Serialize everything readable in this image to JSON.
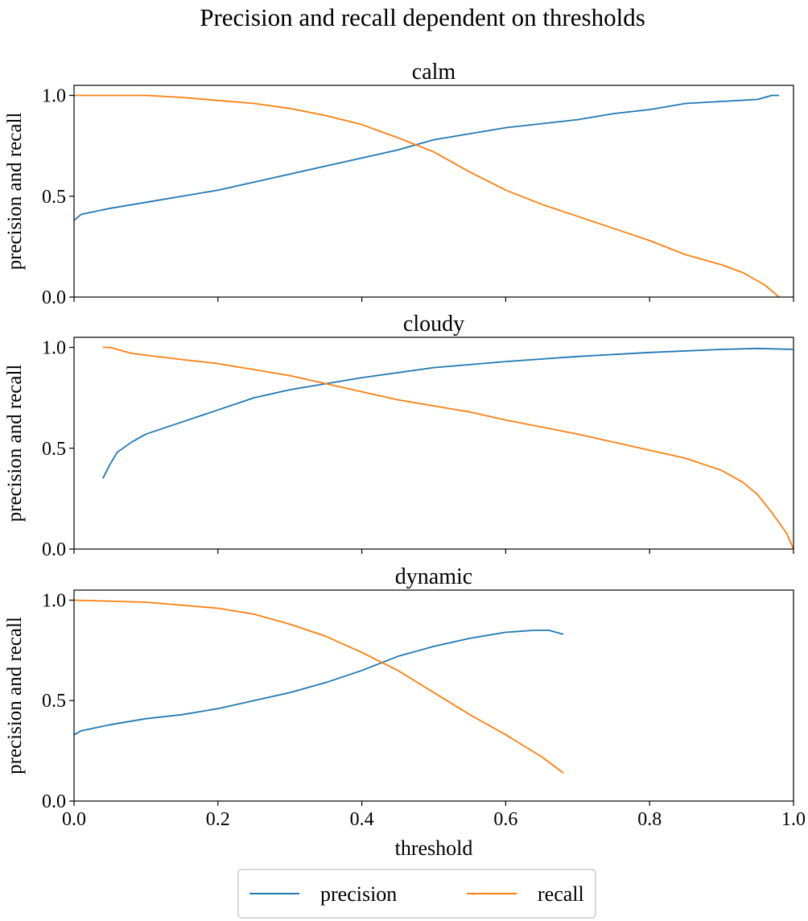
{
  "chart_data": {
    "title": "Precision and recall dependent on thresholds",
    "xlabel": "threshold",
    "colors": {
      "precision": "#1f77b4",
      "recall": "#ff7f0e"
    },
    "legend": {
      "placement": "bottom-center",
      "entries": [
        "precision",
        "recall"
      ]
    },
    "panels": [
      {
        "type": "line",
        "title": "calm",
        "ylabel": "precision and recall",
        "xlim": [
          0,
          1
        ],
        "ylim": [
          0,
          1.05
        ],
        "xticks": [
          "0.0",
          "0.2",
          "0.4",
          "0.6",
          "0.8",
          "1.0"
        ],
        "yticks": [
          "0.0",
          "0.5",
          "1.0"
        ],
        "series": [
          {
            "name": "precision",
            "x": [
              0,
              0.01,
              0.05,
              0.1,
              0.2,
              0.3,
              0.4,
              0.45,
              0.5,
              0.55,
              0.6,
              0.7,
              0.75,
              0.8,
              0.85,
              0.9,
              0.95,
              0.97,
              0.98
            ],
            "y": [
              0.38,
              0.41,
              0.44,
              0.47,
              0.53,
              0.61,
              0.69,
              0.73,
              0.78,
              0.81,
              0.84,
              0.88,
              0.91,
              0.93,
              0.96,
              0.97,
              0.98,
              1.0,
              1.0
            ]
          },
          {
            "name": "recall",
            "x": [
              0,
              0.1,
              0.15,
              0.2,
              0.25,
              0.3,
              0.35,
              0.4,
              0.45,
              0.5,
              0.55,
              0.6,
              0.65,
              0.7,
              0.75,
              0.8,
              0.85,
              0.9,
              0.93,
              0.96,
              0.98
            ],
            "y": [
              1.0,
              1.0,
              0.99,
              0.975,
              0.96,
              0.935,
              0.9,
              0.855,
              0.79,
              0.72,
              0.62,
              0.53,
              0.46,
              0.4,
              0.34,
              0.28,
              0.21,
              0.16,
              0.12,
              0.06,
              0.0
            ]
          }
        ]
      },
      {
        "type": "line",
        "title": "cloudy",
        "ylabel": "precision and recall",
        "xlim": [
          0,
          1
        ],
        "ylim": [
          0,
          1.05
        ],
        "xticks": [
          "0.0",
          "0.2",
          "0.4",
          "0.6",
          "0.8",
          "1.0"
        ],
        "yticks": [
          "0.0",
          "0.5",
          "1.0"
        ],
        "series": [
          {
            "name": "precision",
            "x": [
              0.04,
              0.05,
              0.06,
              0.08,
              0.1,
              0.15,
              0.2,
              0.25,
              0.3,
              0.35,
              0.4,
              0.5,
              0.6,
              0.7,
              0.8,
              0.9,
              0.95,
              0.999
            ],
            "y": [
              0.35,
              0.42,
              0.48,
              0.53,
              0.57,
              0.63,
              0.69,
              0.75,
              0.79,
              0.82,
              0.85,
              0.9,
              0.93,
              0.955,
              0.975,
              0.99,
              0.995,
              0.99
            ]
          },
          {
            "name": "recall",
            "x": [
              0.04,
              0.05,
              0.08,
              0.15,
              0.2,
              0.25,
              0.3,
              0.35,
              0.4,
              0.45,
              0.5,
              0.55,
              0.6,
              0.7,
              0.8,
              0.85,
              0.9,
              0.93,
              0.95,
              0.97,
              0.99,
              1.0
            ],
            "y": [
              1.0,
              1.0,
              0.97,
              0.94,
              0.92,
              0.89,
              0.86,
              0.82,
              0.78,
              0.74,
              0.71,
              0.68,
              0.64,
              0.57,
              0.49,
              0.45,
              0.39,
              0.33,
              0.27,
              0.18,
              0.08,
              0.0
            ]
          }
        ]
      },
      {
        "type": "line",
        "title": "dynamic",
        "ylabel": "precision and recall",
        "xlim": [
          0,
          1
        ],
        "ylim": [
          0,
          1.05
        ],
        "xticks": [
          "0.0",
          "0.2",
          "0.4",
          "0.6",
          "0.8",
          "1.0"
        ],
        "yticks": [
          "0.0",
          "0.5",
          "1.0"
        ],
        "series": [
          {
            "name": "precision",
            "x": [
              0,
              0.01,
              0.05,
              0.1,
              0.15,
              0.2,
              0.25,
              0.3,
              0.35,
              0.4,
              0.45,
              0.5,
              0.55,
              0.6,
              0.64,
              0.66,
              0.68
            ],
            "y": [
              0.33,
              0.35,
              0.38,
              0.41,
              0.43,
              0.46,
              0.5,
              0.54,
              0.59,
              0.65,
              0.72,
              0.77,
              0.81,
              0.84,
              0.85,
              0.85,
              0.83
            ]
          },
          {
            "name": "recall",
            "x": [
              0,
              0.1,
              0.2,
              0.25,
              0.3,
              0.35,
              0.4,
              0.45,
              0.5,
              0.55,
              0.6,
              0.65,
              0.68
            ],
            "y": [
              1.0,
              0.99,
              0.96,
              0.93,
              0.88,
              0.82,
              0.74,
              0.65,
              0.54,
              0.43,
              0.33,
              0.22,
              0.14
            ]
          }
        ]
      }
    ]
  }
}
